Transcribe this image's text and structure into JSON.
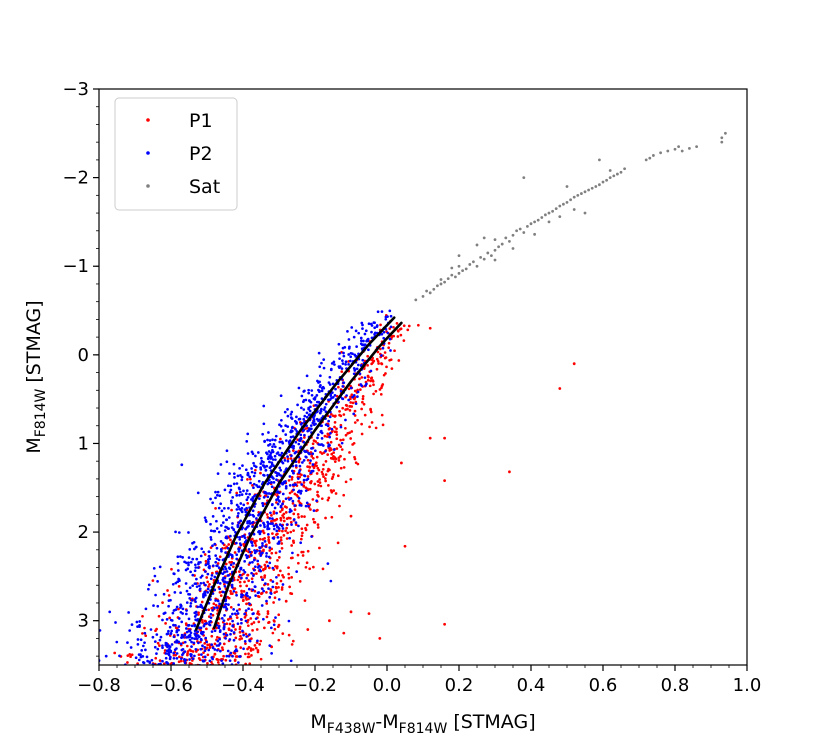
{
  "chart_data": {
    "type": "scatter",
    "title": "",
    "xlabel": {
      "parts": [
        {
          "text": "M",
          "sub": false
        },
        {
          "text": "F438W",
          "sub": true
        },
        {
          "text": "-M",
          "sub": false
        },
        {
          "text": "F814W",
          "sub": true
        },
        {
          "text": " [STMAG]",
          "sub": false
        }
      ]
    },
    "ylabel": {
      "parts": [
        {
          "text": "M",
          "sub": false
        },
        {
          "text": "F814W",
          "sub": true
        },
        {
          "text": " [STMAG]",
          "sub": false
        }
      ]
    },
    "xlim": [
      -0.8,
      1.0
    ],
    "ylim": [
      3.5,
      -3.0
    ],
    "y_inverted": true,
    "x_ticks": [
      -0.8,
      -0.6,
      -0.4,
      -0.2,
      0.0,
      0.2,
      0.4,
      0.6,
      0.8,
      1.0
    ],
    "x_tick_labels": [
      "−0.8",
      "−0.6",
      "−0.4",
      "−0.2",
      "0.0",
      "0.2",
      "0.4",
      "0.6",
      "0.8",
      "1.0"
    ],
    "y_ticks": [
      -3,
      -2,
      -1,
      0,
      1,
      2,
      3
    ],
    "y_tick_labels": [
      "−3",
      "−2",
      "−1",
      "0",
      "1",
      "2",
      "3"
    ],
    "grid": false,
    "legend_position": "top-left",
    "series": [
      {
        "name": "P1",
        "color": "#ff0000",
        "kind": "points",
        "sequence_ridge": {
          "top": [
            0.04,
            -0.4
          ],
          "mid": [
            -0.22,
            1.3
          ],
          "bottom": [
            -0.47,
            3.1
          ]
        },
        "spread": 0.045,
        "count": 1100,
        "outliers": [
          [
            0.12,
            -0.3
          ],
          [
            0.52,
            0.1
          ],
          [
            0.48,
            0.38
          ],
          [
            0.12,
            0.94
          ],
          [
            0.16,
            0.94
          ],
          [
            0.04,
            1.22
          ],
          [
            0.16,
            1.42
          ],
          [
            0.34,
            1.32
          ],
          [
            -0.1,
            1.82
          ],
          [
            -0.26,
            2.1
          ],
          [
            0.05,
            2.16
          ],
          [
            -0.28,
            2.78
          ],
          [
            -0.1,
            2.9
          ],
          [
            -0.05,
            2.92
          ],
          [
            -0.16,
            3.0
          ],
          [
            -0.12,
            3.14
          ],
          [
            -0.22,
            3.1
          ],
          [
            0.16,
            3.04
          ],
          [
            -0.3,
            3.05
          ],
          [
            -0.02,
            3.2
          ]
        ]
      },
      {
        "name": "P2",
        "color": "#0000ff",
        "kind": "points",
        "sequence_ridge": {
          "top": [
            0.0,
            -0.5
          ],
          "mid": [
            -0.3,
            1.2
          ],
          "bottom": [
            -0.53,
            3.1
          ]
        },
        "spread": 0.045,
        "count": 1500,
        "outliers": [
          [
            -0.57,
            1.24
          ],
          [
            -0.78,
            3.4
          ],
          [
            -0.8,
            3.45
          ]
        ]
      },
      {
        "name": "Sat",
        "color": "#808080",
        "kind": "points",
        "points": [
          [
            0.08,
            -0.62
          ],
          [
            0.1,
            -0.66
          ],
          [
            0.12,
            -0.7
          ],
          [
            0.11,
            -0.72
          ],
          [
            0.13,
            -0.74
          ],
          [
            0.14,
            -0.78
          ],
          [
            0.15,
            -0.8
          ],
          [
            0.16,
            -0.82
          ],
          [
            0.15,
            -0.85
          ],
          [
            0.17,
            -0.86
          ],
          [
            0.18,
            -0.9
          ],
          [
            0.19,
            -0.88
          ],
          [
            0.2,
            -0.92
          ],
          [
            0.21,
            -0.95
          ],
          [
            0.22,
            -0.97
          ],
          [
            0.2,
            -1.0
          ],
          [
            0.23,
            -1.02
          ],
          [
            0.24,
            -1.05
          ],
          [
            0.25,
            -1.0
          ],
          [
            0.26,
            -1.1
          ],
          [
            0.27,
            -1.08
          ],
          [
            0.28,
            -1.15
          ],
          [
            0.29,
            -1.12
          ],
          [
            0.3,
            -1.18
          ],
          [
            0.31,
            -1.22
          ],
          [
            0.3,
            -1.3
          ],
          [
            0.32,
            -1.25
          ],
          [
            0.33,
            -1.32
          ],
          [
            0.34,
            -1.28
          ],
          [
            0.35,
            -1.35
          ],
          [
            0.36,
            -1.4
          ],
          [
            0.37,
            -1.42
          ],
          [
            0.38,
            -1.38
          ],
          [
            0.39,
            -1.45
          ],
          [
            0.4,
            -1.48
          ],
          [
            0.41,
            -1.5
          ],
          [
            0.42,
            -1.52
          ],
          [
            0.43,
            -1.55
          ],
          [
            0.44,
            -1.58
          ],
          [
            0.45,
            -1.6
          ],
          [
            0.46,
            -1.62
          ],
          [
            0.47,
            -1.65
          ],
          [
            0.48,
            -1.68
          ],
          [
            0.49,
            -1.7
          ],
          [
            0.5,
            -1.72
          ],
          [
            0.51,
            -1.75
          ],
          [
            0.52,
            -1.78
          ],
          [
            0.53,
            -1.8
          ],
          [
            0.54,
            -1.82
          ],
          [
            0.55,
            -1.84
          ],
          [
            0.56,
            -1.86
          ],
          [
            0.57,
            -1.88
          ],
          [
            0.58,
            -1.9
          ],
          [
            0.59,
            -1.92
          ],
          [
            0.6,
            -1.95
          ],
          [
            0.61,
            -1.97
          ],
          [
            0.62,
            -2.0
          ],
          [
            0.63,
            -2.02
          ],
          [
            0.64,
            -2.04
          ],
          [
            0.65,
            -2.06
          ],
          [
            0.66,
            -2.1
          ],
          [
            0.72,
            -2.2
          ],
          [
            0.73,
            -2.22
          ],
          [
            0.74,
            -2.25
          ],
          [
            0.76,
            -2.28
          ],
          [
            0.78,
            -2.3
          ],
          [
            0.8,
            -2.32
          ],
          [
            0.81,
            -2.35
          ],
          [
            0.82,
            -2.3
          ],
          [
            0.84,
            -2.33
          ],
          [
            0.86,
            -2.35
          ],
          [
            0.93,
            -2.4
          ],
          [
            0.94,
            -2.5
          ],
          [
            0.93,
            -2.45
          ],
          [
            0.5,
            -1.9
          ],
          [
            0.59,
            -2.2
          ],
          [
            0.38,
            -2.0
          ],
          [
            0.45,
            -1.5
          ],
          [
            0.52,
            -1.64
          ],
          [
            0.27,
            -1.32
          ],
          [
            0.25,
            -1.24
          ],
          [
            0.2,
            -1.12
          ],
          [
            0.18,
            -0.98
          ],
          [
            0.62,
            -2.08
          ],
          [
            0.55,
            -1.6
          ],
          [
            0.48,
            -1.56
          ],
          [
            0.41,
            -1.36
          ],
          [
            0.35,
            -1.2
          ],
          [
            0.3,
            -1.07
          ]
        ]
      }
    ],
    "fit_lines": [
      {
        "color": "#000000",
        "points": [
          [
            0.04,
            -0.36
          ],
          [
            -0.02,
            -0.1
          ],
          [
            -0.1,
            0.3
          ],
          [
            -0.2,
            0.85
          ],
          [
            -0.3,
            1.45
          ],
          [
            -0.38,
            2.05
          ],
          [
            -0.44,
            2.6
          ],
          [
            -0.48,
            3.08
          ]
        ]
      },
      {
        "color": "#000000",
        "points": [
          [
            0.02,
            -0.42
          ],
          [
            -0.05,
            -0.12
          ],
          [
            -0.14,
            0.32
          ],
          [
            -0.24,
            0.85
          ],
          [
            -0.34,
            1.45
          ],
          [
            -0.42,
            2.05
          ],
          [
            -0.48,
            2.6
          ],
          [
            -0.53,
            3.1
          ]
        ]
      }
    ]
  }
}
